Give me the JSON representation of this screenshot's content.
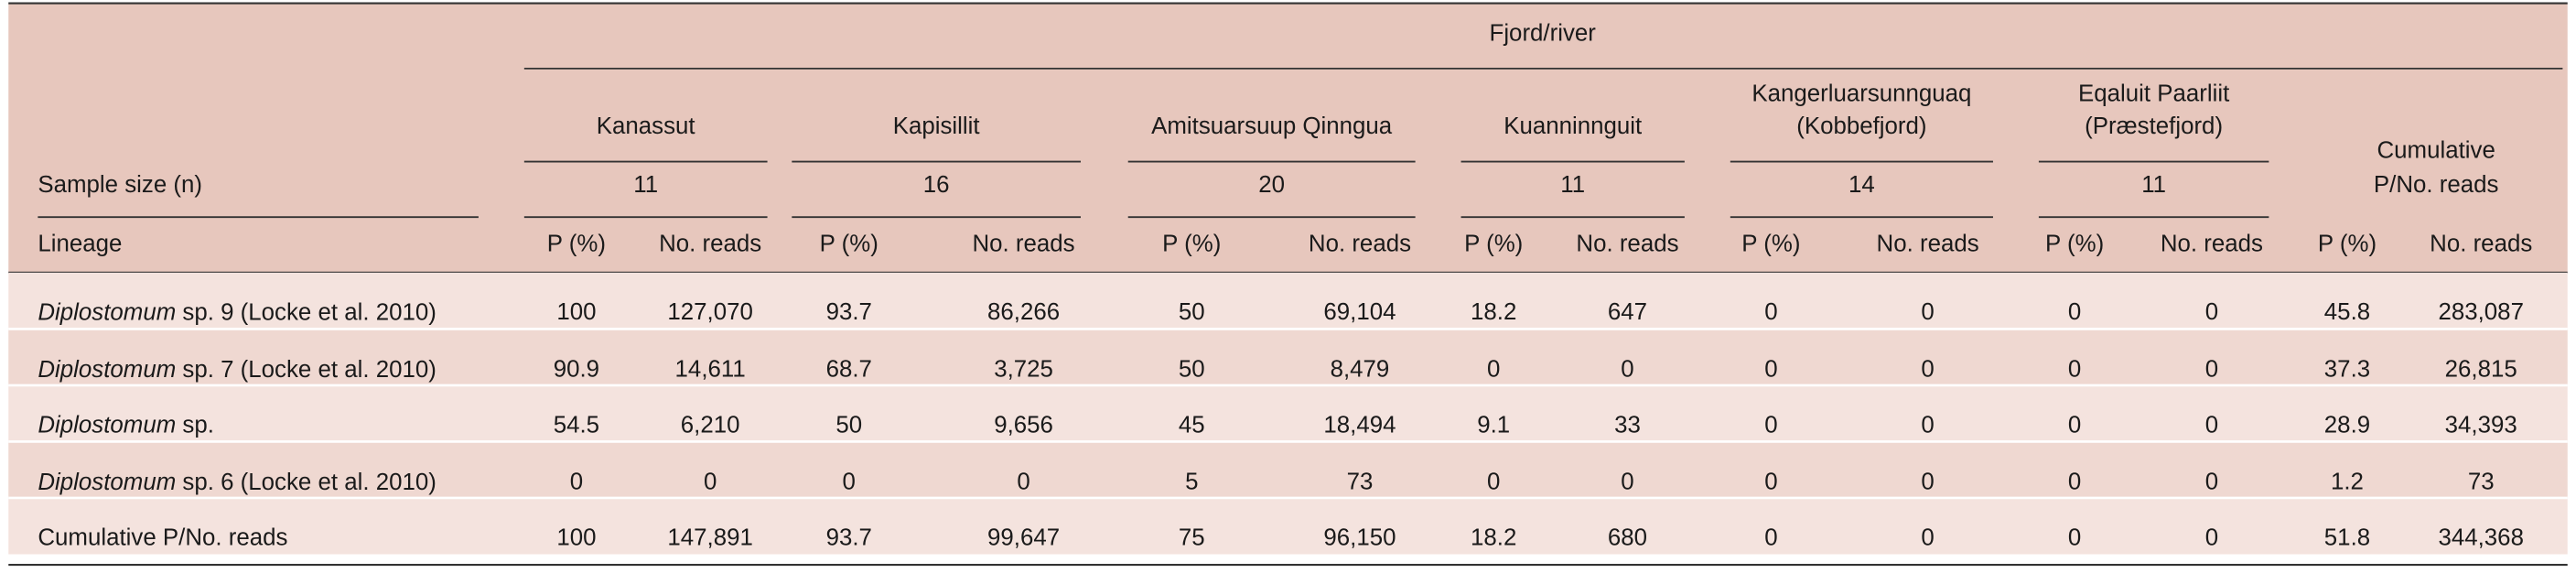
{
  "table": {
    "spanner": "Fjord/river",
    "sample_size_label": "Sample size (n)",
    "lineage_label": "Lineage",
    "subheaders": {
      "p": "P (%)",
      "reads": "No. reads"
    },
    "groups": [
      {
        "name": [
          "Kanassut"
        ],
        "n": "11"
      },
      {
        "name": [
          "Kapisillit"
        ],
        "n": "16"
      },
      {
        "name": [
          "Amitsuarsuup Qinngua"
        ],
        "n": "20"
      },
      {
        "name": [
          "Kuanninnguit"
        ],
        "n": "11"
      },
      {
        "name": [
          "Kangerluarsunnguaq",
          "(Kobbefjord)"
        ],
        "n": "14"
      },
      {
        "name": [
          "Eqaluit Paarliit",
          "(Præstefjord)"
        ],
        "n": "11"
      },
      {
        "name": [
          "Cumulative",
          "P/No. reads"
        ]
      }
    ],
    "rows": [
      {
        "lineage": {
          "genus": "Diplostomum",
          "rest": "sp. 9 (Locke et al. 2010)"
        },
        "cells": [
          "100",
          "127,070",
          "93.7",
          "86,266",
          "50",
          "69,104",
          "18.2",
          "647",
          "0",
          "0",
          "0",
          "0",
          "45.8",
          "283,087"
        ]
      },
      {
        "lineage": {
          "genus": "Diplostomum",
          "rest": "sp. 7 (Locke et al. 2010)"
        },
        "cells": [
          "90.9",
          "14,611",
          "68.7",
          "3,725",
          "50",
          "8,479",
          "0",
          "0",
          "0",
          "0",
          "0",
          "0",
          "37.3",
          "26,815"
        ]
      },
      {
        "lineage": {
          "genus": "Diplostomum",
          "rest": "sp."
        },
        "cells": [
          "54.5",
          "6,210",
          "50",
          "9,656",
          "45",
          "18,494",
          "9.1",
          "33",
          "0",
          "0",
          "0",
          "0",
          "28.9",
          "34,393"
        ]
      },
      {
        "lineage": {
          "genus": "Diplostomum",
          "rest": "sp. 6 (Locke et al. 2010)"
        },
        "cells": [
          "0",
          "0",
          "0",
          "0",
          "5",
          "73",
          "0",
          "0",
          "0",
          "0",
          "0",
          "0",
          "1.2",
          "73"
        ]
      },
      {
        "label": "Cumulative P/No. reads",
        "cells": [
          "100",
          "147,891",
          "93.7",
          "99,647",
          "75",
          "96,150",
          "18.2",
          "680",
          "0",
          "0",
          "0",
          "0",
          "51.8",
          "344,368"
        ]
      }
    ]
  }
}
